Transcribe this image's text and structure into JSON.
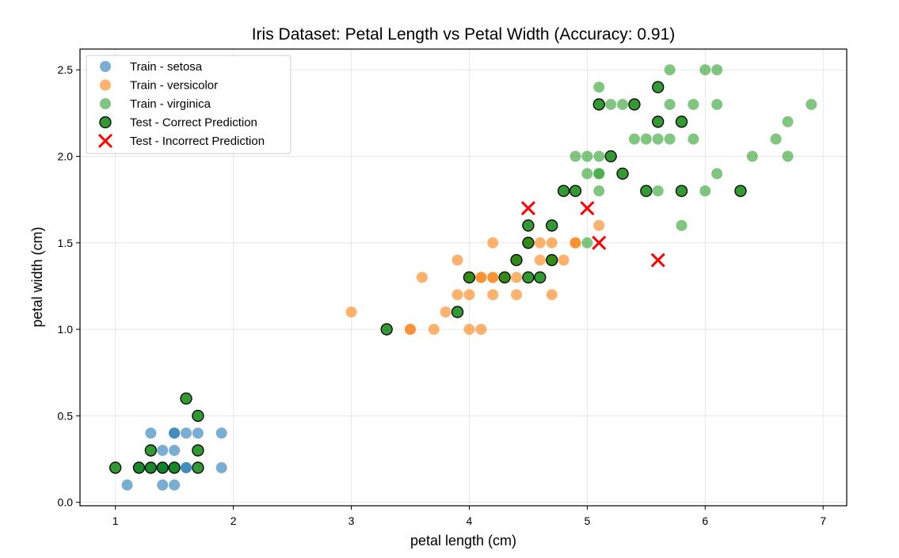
{
  "chart_data": {
    "type": "scatter",
    "title": "Iris Dataset: Petal Length vs Petal Width (Accuracy: 0.91)",
    "xlabel": "petal length (cm)",
    "ylabel": "petal width (cm)",
    "xlim": [
      0.7,
      7.2
    ],
    "ylim": [
      -0.02,
      2.62
    ],
    "xticks": [
      1,
      2,
      3,
      4,
      5,
      6,
      7
    ],
    "xtick_labels": [
      "1",
      "2",
      "3",
      "4",
      "5",
      "6",
      "7"
    ],
    "yticks": [
      0.0,
      0.5,
      1.0,
      1.5,
      2.0,
      2.5
    ],
    "ytick_labels": [
      "0.0",
      "0.5",
      "1.0",
      "1.5",
      "2.0",
      "2.5"
    ],
    "grid": true,
    "legend_position": "top-left",
    "series": [
      {
        "name": "Train - setosa",
        "marker": "circle",
        "color": "#1f77b4",
        "points": [
          [
            1.1,
            0.1
          ],
          [
            1.3,
            0.4
          ],
          [
            1.4,
            0.1
          ],
          [
            1.4,
            0.2
          ],
          [
            1.4,
            0.3
          ],
          [
            1.5,
            0.1
          ],
          [
            1.5,
            0.2
          ],
          [
            1.5,
            0.3
          ],
          [
            1.5,
            0.4
          ],
          [
            1.5,
            0.4
          ],
          [
            1.6,
            0.2
          ],
          [
            1.6,
            0.2
          ],
          [
            1.6,
            0.4
          ],
          [
            1.7,
            0.4
          ],
          [
            1.9,
            0.2
          ],
          [
            1.9,
            0.4
          ],
          [
            1.2,
            0.2
          ],
          [
            1.3,
            0.2
          ],
          [
            1.4,
            0.2
          ]
        ]
      },
      {
        "name": "Train - versicolor",
        "marker": "circle",
        "color": "#ff7f0e",
        "points": [
          [
            3.0,
            1.1
          ],
          [
            3.5,
            1.0
          ],
          [
            3.5,
            1.0
          ],
          [
            3.6,
            1.3
          ],
          [
            3.7,
            1.0
          ],
          [
            3.8,
            1.1
          ],
          [
            3.9,
            1.2
          ],
          [
            3.9,
            1.4
          ],
          [
            4.0,
            1.0
          ],
          [
            4.0,
            1.2
          ],
          [
            4.0,
            1.3
          ],
          [
            4.1,
            1.0
          ],
          [
            4.1,
            1.3
          ],
          [
            4.1,
            1.3
          ],
          [
            4.2,
            1.2
          ],
          [
            4.2,
            1.3
          ],
          [
            4.2,
            1.3
          ],
          [
            4.2,
            1.5
          ],
          [
            4.3,
            1.3
          ],
          [
            4.4,
            1.2
          ],
          [
            4.4,
            1.3
          ],
          [
            4.4,
            1.4
          ],
          [
            4.5,
            1.5
          ],
          [
            4.6,
            1.4
          ],
          [
            4.6,
            1.5
          ],
          [
            4.7,
            1.2
          ],
          [
            4.7,
            1.4
          ],
          [
            4.7,
            1.5
          ],
          [
            4.8,
            1.4
          ],
          [
            4.9,
            1.5
          ],
          [
            4.9,
            1.5
          ],
          [
            5.1,
            1.6
          ]
        ]
      },
      {
        "name": "Train - virginica",
        "marker": "circle",
        "color": "#2ca02c",
        "points": [
          [
            4.9,
            2.0
          ],
          [
            5.0,
            1.5
          ],
          [
            5.0,
            1.9
          ],
          [
            5.0,
            2.0
          ],
          [
            5.1,
            1.8
          ],
          [
            5.1,
            1.9
          ],
          [
            5.1,
            1.9
          ],
          [
            5.1,
            2.0
          ],
          [
            5.1,
            2.4
          ],
          [
            5.2,
            2.3
          ],
          [
            5.3,
            2.3
          ],
          [
            5.4,
            2.1
          ],
          [
            5.5,
            2.1
          ],
          [
            5.6,
            1.8
          ],
          [
            5.6,
            2.1
          ],
          [
            5.7,
            2.1
          ],
          [
            5.7,
            2.3
          ],
          [
            5.7,
            2.5
          ],
          [
            5.8,
            1.6
          ],
          [
            5.9,
            2.1
          ],
          [
            5.9,
            2.3
          ],
          [
            6.0,
            1.8
          ],
          [
            6.0,
            2.5
          ],
          [
            6.1,
            1.9
          ],
          [
            6.1,
            2.3
          ],
          [
            6.1,
            2.5
          ],
          [
            6.4,
            2.0
          ],
          [
            6.6,
            2.1
          ],
          [
            6.7,
            2.0
          ],
          [
            6.7,
            2.2
          ],
          [
            6.9,
            2.3
          ]
        ]
      },
      {
        "name": "Test - Correct Prediction",
        "marker": "circle-edged",
        "color": "#008000",
        "points": [
          [
            1.0,
            0.2
          ],
          [
            1.2,
            0.2
          ],
          [
            1.3,
            0.2
          ],
          [
            1.3,
            0.3
          ],
          [
            1.4,
            0.2
          ],
          [
            1.5,
            0.2
          ],
          [
            1.6,
            0.6
          ],
          [
            1.7,
            0.2
          ],
          [
            1.7,
            0.3
          ],
          [
            1.7,
            0.5
          ],
          [
            3.3,
            1.0
          ],
          [
            3.9,
            1.1
          ],
          [
            4.0,
            1.3
          ],
          [
            4.3,
            1.3
          ],
          [
            4.4,
            1.4
          ],
          [
            4.5,
            1.3
          ],
          [
            4.5,
            1.5
          ],
          [
            4.5,
            1.6
          ],
          [
            4.6,
            1.3
          ],
          [
            4.7,
            1.4
          ],
          [
            4.7,
            1.6
          ],
          [
            4.8,
            1.8
          ],
          [
            4.9,
            1.8
          ],
          [
            5.1,
            2.3
          ],
          [
            5.2,
            2.0
          ],
          [
            5.3,
            1.9
          ],
          [
            5.4,
            2.3
          ],
          [
            5.5,
            1.8
          ],
          [
            5.6,
            2.2
          ],
          [
            5.6,
            2.4
          ],
          [
            5.8,
            1.8
          ],
          [
            5.8,
            2.2
          ],
          [
            6.3,
            1.8
          ]
        ]
      },
      {
        "name": "Test - Incorrect Prediction",
        "marker": "x",
        "color": "#ff0000",
        "points": [
          [
            4.5,
            1.7
          ],
          [
            5.0,
            1.7
          ],
          [
            5.1,
            1.5
          ],
          [
            5.6,
            1.4
          ]
        ]
      }
    ]
  }
}
